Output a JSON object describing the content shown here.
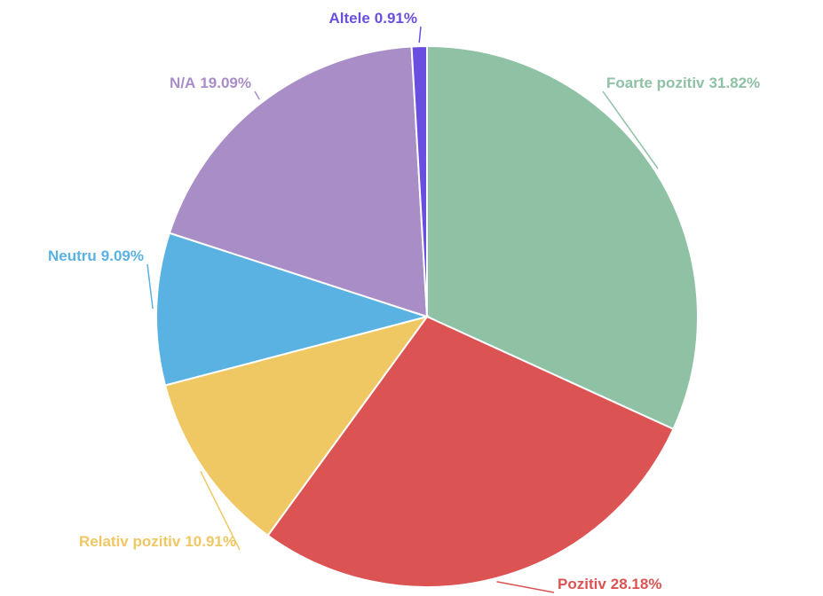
{
  "chart_data": {
    "type": "pie",
    "categories": [
      "Foarte pozitiv",
      "Pozitiv",
      "Relativ pozitiv",
      "Neutru",
      "N/A",
      "Altele"
    ],
    "values": [
      31.82,
      28.18,
      10.91,
      9.09,
      19.09,
      0.91
    ],
    "value_labels": [
      "31.82%",
      "28.18%",
      "10.91%",
      "9.09%",
      "19.09%",
      "0.91%"
    ],
    "colors": [
      "#8fc1a4",
      "#dc5353",
      "#efc763",
      "#5ab2e2",
      "#a98dc7",
      "#6a4ee0"
    ]
  }
}
